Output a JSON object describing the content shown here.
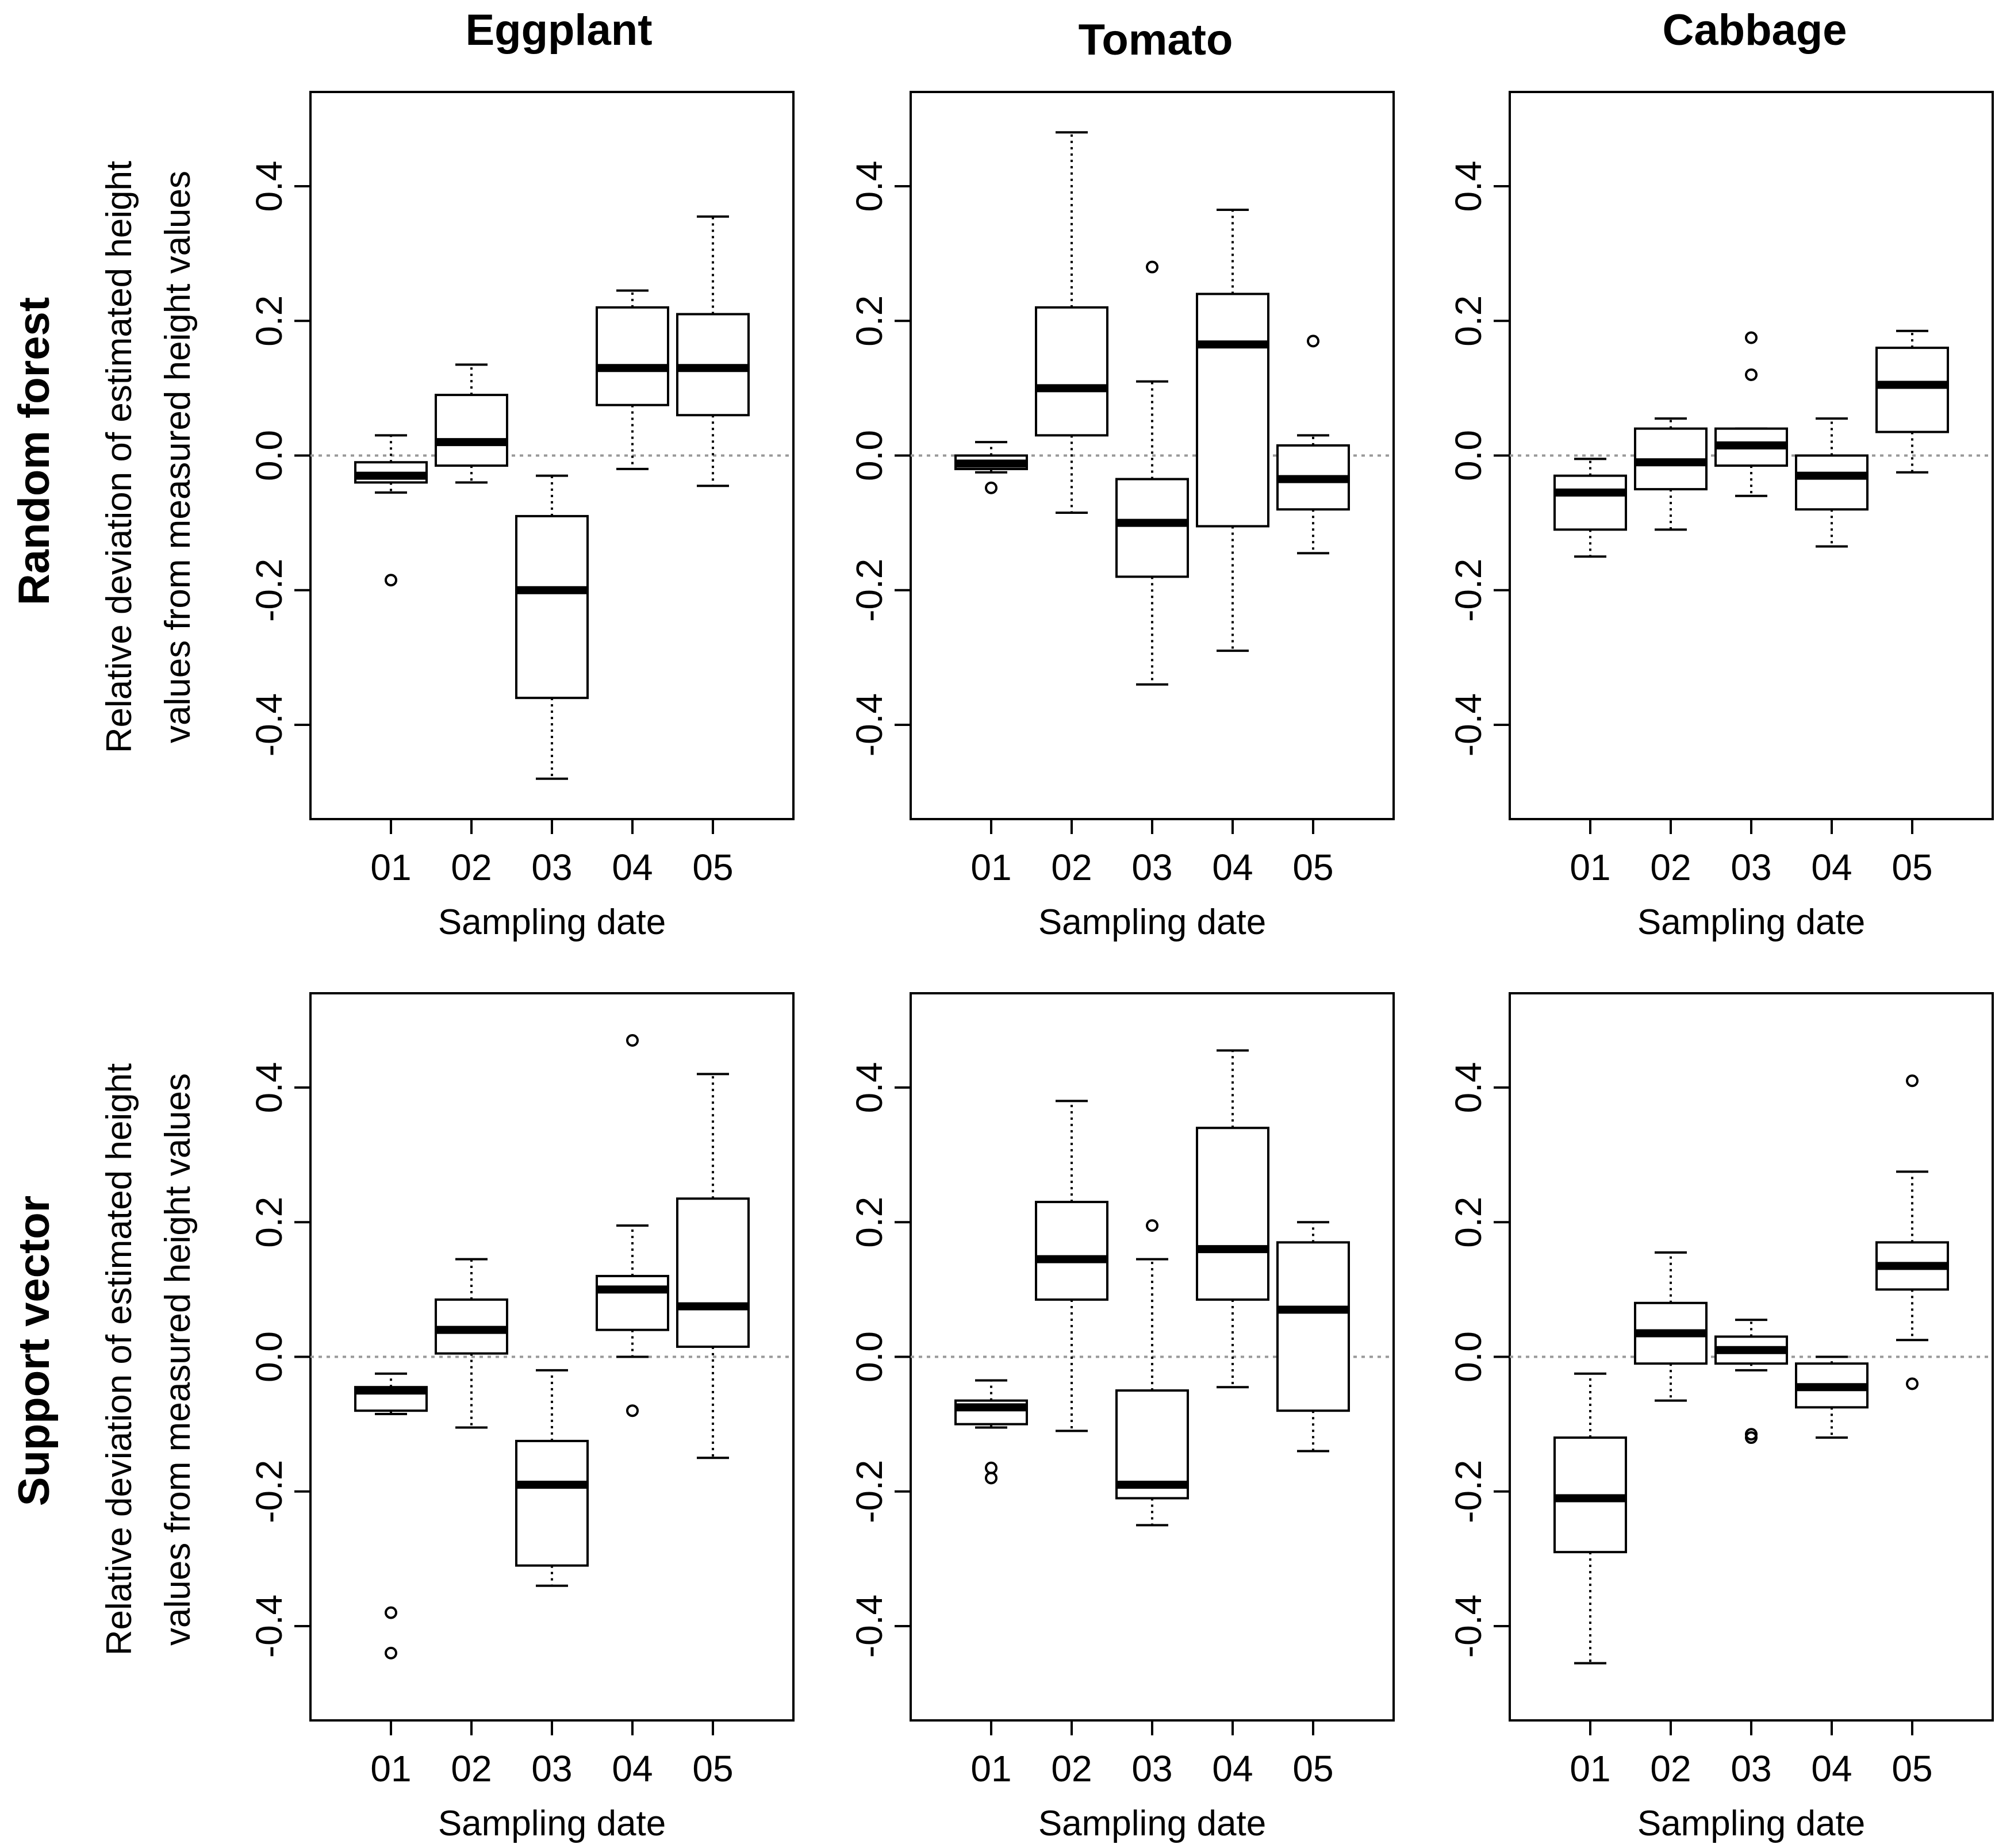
{
  "col_titles": [
    "Eggplant",
    "Tomato",
    "Cabbage"
  ],
  "row_titles": [
    "Random forest",
    "Support vector"
  ],
  "y_label_line1": "Relative deviation of estimated height",
  "y_label_line2": "values from measured height values",
  "x_label": "Sampling date",
  "y_ticks": [
    "-0.4",
    "-0.2",
    "0.0",
    "0.2",
    "0.4"
  ],
  "colors": {
    "box": "#000000",
    "reference_line": "#999999",
    "background": "#ffffff"
  },
  "chart_data": [
    {
      "type": "boxplot",
      "title": "Eggplant",
      "row": "Random forest",
      "xlabel": "Sampling date",
      "ylabel": "Relative deviation of estimated height values from measured height values",
      "ylim": [
        -0.54,
        0.54
      ],
      "reference_line": 0.0,
      "categories": [
        "01",
        "02",
        "03",
        "04",
        "05"
      ],
      "boxes": [
        {
          "min": -0.055,
          "q1": -0.04,
          "median": -0.03,
          "q3": -0.01,
          "max": 0.03,
          "outliers": [
            -0.185
          ]
        },
        {
          "min": -0.04,
          "q1": -0.015,
          "median": 0.02,
          "q3": 0.09,
          "max": 0.135,
          "outliers": []
        },
        {
          "min": -0.48,
          "q1": -0.36,
          "median": -0.2,
          "q3": -0.09,
          "max": -0.03,
          "outliers": []
        },
        {
          "min": -0.02,
          "q1": 0.075,
          "median": 0.13,
          "q3": 0.22,
          "max": 0.245,
          "outliers": []
        },
        {
          "min": -0.045,
          "q1": 0.06,
          "median": 0.13,
          "q3": 0.21,
          "max": 0.355,
          "outliers": []
        }
      ]
    },
    {
      "type": "boxplot",
      "title": "Tomato",
      "row": "Random forest",
      "xlabel": "Sampling date",
      "ylabel": "",
      "ylim": [
        -0.54,
        0.54
      ],
      "reference_line": 0.0,
      "categories": [
        "01",
        "02",
        "03",
        "04",
        "05"
      ],
      "boxes": [
        {
          "min": -0.025,
          "q1": -0.02,
          "median": -0.012,
          "q3": 0.0,
          "max": 0.02,
          "outliers": [
            -0.048
          ]
        },
        {
          "min": -0.085,
          "q1": 0.03,
          "median": 0.1,
          "q3": 0.22,
          "max": 0.48,
          "outliers": []
        },
        {
          "min": -0.34,
          "q1": -0.18,
          "median": -0.1,
          "q3": -0.035,
          "max": 0.11,
          "outliers": [
            0.28
          ]
        },
        {
          "min": -0.29,
          "q1": -0.105,
          "median": 0.165,
          "q3": 0.24,
          "max": 0.365,
          "outliers": []
        },
        {
          "min": -0.145,
          "q1": -0.08,
          "median": -0.035,
          "q3": 0.015,
          "max": 0.03,
          "outliers": [
            0.17
          ]
        }
      ]
    },
    {
      "type": "boxplot",
      "title": "Cabbage",
      "row": "Random forest",
      "xlabel": "Sampling date",
      "ylabel": "",
      "ylim": [
        -0.54,
        0.54
      ],
      "reference_line": 0.0,
      "categories": [
        "01",
        "02",
        "03",
        "04",
        "05"
      ],
      "boxes": [
        {
          "min": -0.15,
          "q1": -0.11,
          "median": -0.055,
          "q3": -0.03,
          "max": -0.005,
          "outliers": []
        },
        {
          "min": -0.11,
          "q1": -0.05,
          "median": -0.01,
          "q3": 0.04,
          "max": 0.055,
          "outliers": []
        },
        {
          "min": -0.06,
          "q1": -0.015,
          "median": 0.015,
          "q3": 0.04,
          "max": 0.04,
          "outliers": [
            0.12,
            0.175
          ]
        },
        {
          "min": -0.135,
          "q1": -0.08,
          "median": -0.03,
          "q3": 0.0,
          "max": 0.055,
          "outliers": []
        },
        {
          "min": -0.025,
          "q1": 0.035,
          "median": 0.105,
          "q3": 0.16,
          "max": 0.185,
          "outliers": []
        }
      ]
    },
    {
      "type": "boxplot",
      "title": "Eggplant",
      "row": "Support vector",
      "xlabel": "Sampling date",
      "ylabel": "Relative deviation of estimated height values from measured height values",
      "ylim": [
        -0.54,
        0.54
      ],
      "reference_line": 0.0,
      "categories": [
        "01",
        "02",
        "03",
        "04",
        "05"
      ],
      "boxes": [
        {
          "min": -0.085,
          "q1": -0.08,
          "median": -0.05,
          "q3": -0.045,
          "max": -0.025,
          "outliers": [
            -0.38,
            -0.44
          ]
        },
        {
          "min": -0.105,
          "q1": 0.005,
          "median": 0.04,
          "q3": 0.085,
          "max": 0.145,
          "outliers": []
        },
        {
          "min": -0.34,
          "q1": -0.31,
          "median": -0.19,
          "q3": -0.125,
          "max": -0.02,
          "outliers": []
        },
        {
          "min": 0.0,
          "q1": 0.04,
          "median": 0.1,
          "q3": 0.12,
          "max": 0.195,
          "outliers": [
            0.47,
            -0.08
          ]
        },
        {
          "min": -0.15,
          "q1": 0.015,
          "median": 0.075,
          "q3": 0.235,
          "max": 0.42,
          "outliers": []
        }
      ]
    },
    {
      "type": "boxplot",
      "title": "Tomato",
      "row": "Support vector",
      "xlabel": "Sampling date",
      "ylabel": "",
      "ylim": [
        -0.54,
        0.54
      ],
      "reference_line": 0.0,
      "categories": [
        "01",
        "02",
        "03",
        "04",
        "05"
      ],
      "boxes": [
        {
          "min": -0.105,
          "q1": -0.1,
          "median": -0.075,
          "q3": -0.065,
          "max": -0.035,
          "outliers": [
            -0.165,
            -0.18
          ]
        },
        {
          "min": -0.11,
          "q1": 0.085,
          "median": 0.145,
          "q3": 0.23,
          "max": 0.38,
          "outliers": []
        },
        {
          "min": -0.25,
          "q1": -0.21,
          "median": -0.19,
          "q3": -0.05,
          "max": 0.145,
          "outliers": [
            0.195
          ]
        },
        {
          "min": -0.045,
          "q1": 0.085,
          "median": 0.16,
          "q3": 0.34,
          "max": 0.455,
          "outliers": []
        },
        {
          "min": -0.14,
          "q1": -0.08,
          "median": 0.07,
          "q3": 0.17,
          "max": 0.2,
          "outliers": []
        }
      ]
    },
    {
      "type": "boxplot",
      "title": "Cabbage",
      "row": "Support vector",
      "xlabel": "Sampling date",
      "ylabel": "",
      "ylim": [
        -0.54,
        0.54
      ],
      "reference_line": 0.0,
      "categories": [
        "01",
        "02",
        "03",
        "04",
        "05"
      ],
      "boxes": [
        {
          "min": -0.455,
          "q1": -0.29,
          "median": -0.21,
          "q3": -0.12,
          "max": -0.025,
          "outliers": []
        },
        {
          "min": -0.065,
          "q1": -0.01,
          "median": 0.035,
          "q3": 0.08,
          "max": 0.155,
          "outliers": []
        },
        {
          "min": -0.02,
          "q1": -0.01,
          "median": 0.01,
          "q3": 0.03,
          "max": 0.055,
          "outliers": [
            -0.115,
            -0.12
          ]
        },
        {
          "min": -0.12,
          "q1": -0.075,
          "median": -0.045,
          "q3": -0.01,
          "max": 0.0,
          "outliers": []
        },
        {
          "min": 0.025,
          "q1": 0.1,
          "median": 0.135,
          "q3": 0.17,
          "max": 0.275,
          "outliers": [
            0.41,
            -0.04
          ]
        }
      ]
    }
  ]
}
